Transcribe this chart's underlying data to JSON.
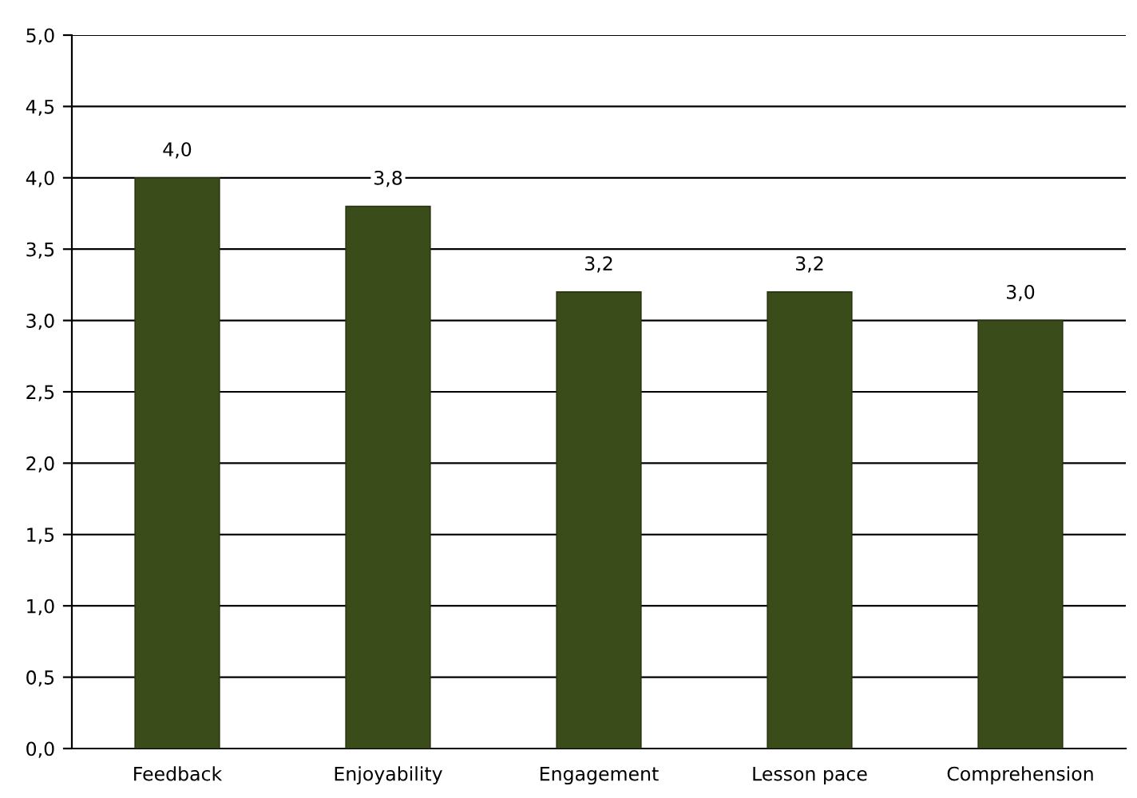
{
  "chart_data": {
    "type": "bar",
    "categories": [
      "Feedback",
      "Enjoyability",
      "Engagement",
      "Lesson pace",
      "Comprehension"
    ],
    "values": [
      4.0,
      3.8,
      3.2,
      3.2,
      3.0
    ],
    "value_labels": [
      "4,0",
      "3,8",
      "3,2",
      "3,2",
      "3,0"
    ],
    "color": "#3b4c1b",
    "ylim": [
      0,
      5
    ],
    "yticks": [
      {
        "value": 0,
        "label": "0,0"
      },
      {
        "value": 0.5,
        "label": "0,5"
      },
      {
        "value": 1,
        "label": "1,0"
      },
      {
        "value": 1.5,
        "label": "1,5"
      },
      {
        "value": 2,
        "label": "2,0"
      },
      {
        "value": 2.5,
        "label": "2,5"
      },
      {
        "value": 3,
        "label": "3,0"
      },
      {
        "value": 3.5,
        "label": "3,5"
      },
      {
        "value": 4,
        "label": "4,0"
      },
      {
        "value": 4.5,
        "label": "4,5"
      },
      {
        "value": 5,
        "label": "5,0"
      }
    ],
    "grid": "y",
    "legend": false
  }
}
